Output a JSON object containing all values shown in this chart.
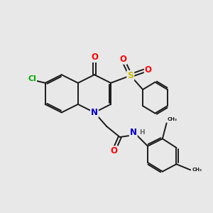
{
  "bg_color": "#e8e8e8",
  "bond_color": "#1a1a1a",
  "bond_width": 1.4,
  "atom_colors": {
    "O": "#ff0000",
    "N": "#0000cc",
    "S": "#ccbb00",
    "Cl": "#00aa00",
    "H": "#666666",
    "C": "#1a1a1a"
  },
  "fs": 7.5
}
